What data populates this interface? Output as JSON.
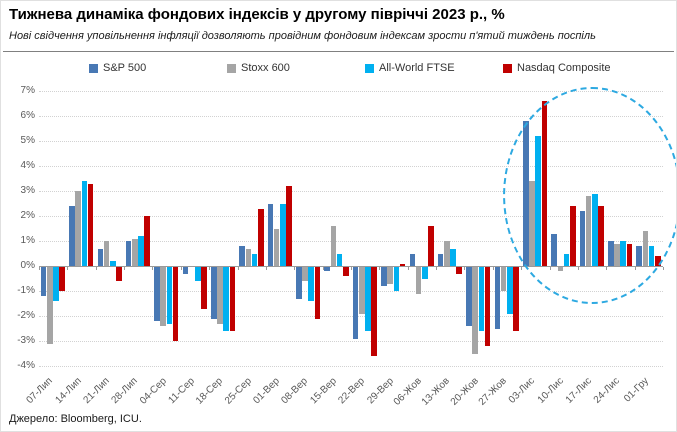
{
  "header": {},
  "footer": {
    "source": "Джерело: Bloomberg, ICU."
  },
  "chart_data": {
    "type": "bar",
    "title": "Тижнева динаміка фондових індексів у другому півріччі 2023 р., %",
    "subtitle": "Нові свідчення уповільнення інфляції дозволяють провідним фондовим індексам зрости п'ятий тиждень поспіль",
    "categories": [
      "07-Лип",
      "14-Лип",
      "21-Лип",
      "28-Лип",
      "04-Сер",
      "11-Сер",
      "18-Сер",
      "25-Сер",
      "01-Вер",
      "08-Вер",
      "15-Вер",
      "22-Вер",
      "29-Вер",
      "06-Жов",
      "13-Жов",
      "20-Жов",
      "27-Жов",
      "03-Лис",
      "10-Лис",
      "17-Лис",
      "24-Лис",
      "01-Гру"
    ],
    "series": [
      {
        "name": "S&P 500",
        "color": "#4878b4",
        "values": [
          -1.2,
          2.4,
          0.7,
          1.0,
          -2.2,
          -0.3,
          -2.1,
          0.8,
          2.5,
          -1.3,
          -0.2,
          -2.9,
          -0.8,
          0.5,
          0.5,
          -2.4,
          -2.5,
          5.8,
          1.3,
          2.2,
          1.0,
          0.8
        ]
      },
      {
        "name": "Stoxx 600",
        "color": "#a5a5a5",
        "values": [
          -3.1,
          3.0,
          1.0,
          1.1,
          -2.4,
          0.0,
          -2.3,
          0.7,
          1.5,
          -0.6,
          1.6,
          -1.9,
          -0.7,
          -1.1,
          1.0,
          -3.5,
          -1.0,
          3.4,
          -0.2,
          2.8,
          0.9,
          1.4
        ]
      },
      {
        "name": "All-World FTSE",
        "color": "#00b0f0",
        "values": [
          -1.4,
          3.4,
          0.2,
          1.2,
          -2.3,
          -0.6,
          -2.6,
          0.5,
          2.5,
          -1.4,
          0.5,
          -2.6,
          -1.0,
          -0.5,
          0.7,
          -2.6,
          -1.9,
          5.2,
          0.5,
          2.9,
          1.0,
          0.8
        ]
      },
      {
        "name": "Nasdaq Composite",
        "color": "#c00000",
        "values": [
          -1.0,
          3.3,
          -0.6,
          2.0,
          -3.0,
          -1.7,
          -2.6,
          2.3,
          3.2,
          -2.1,
          -0.4,
          -3.6,
          0.1,
          1.6,
          -0.3,
          -3.2,
          -2.6,
          6.6,
          2.4,
          2.4,
          0.9,
          0.4
        ]
      }
    ],
    "ylim": [
      -4,
      7
    ],
    "ytick_step": 1,
    "ytick_suffix": "%",
    "grid": "horizontal-dotted",
    "legend_position": "top",
    "annotation": {
      "shape": "dashed-ellipse",
      "color": "#2da9e1",
      "categories_span": [
        "03-Лис",
        "01-Гру"
      ]
    }
  }
}
